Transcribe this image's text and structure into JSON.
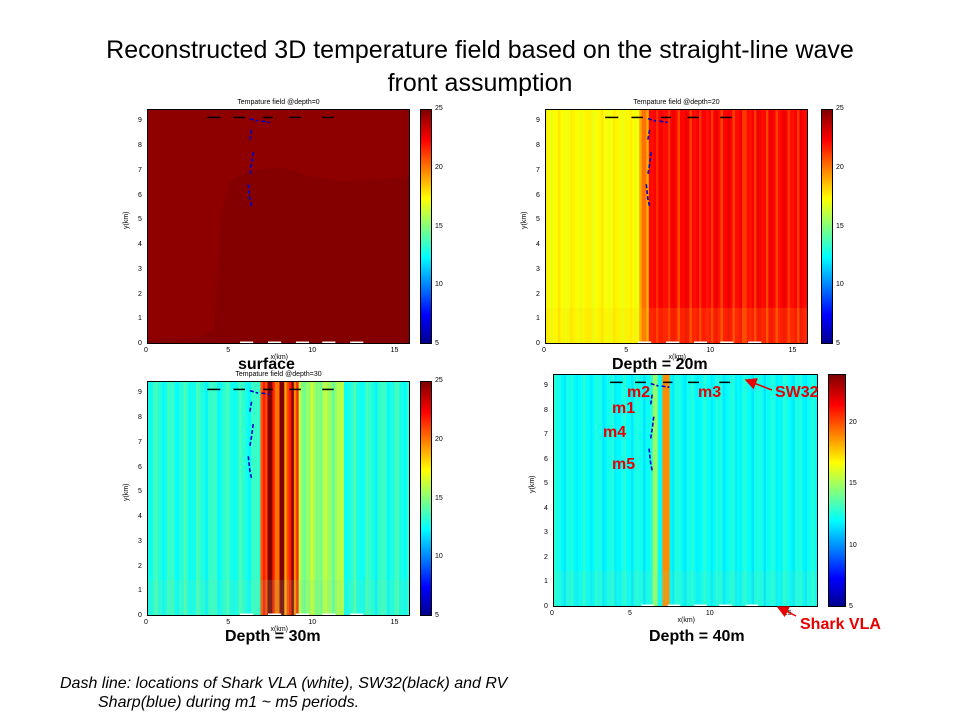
{
  "title_line1": "Reconstructed 3D temperature field based on the straight-line wave",
  "title_line2": "front assumption",
  "note_line1": "Dash line: locations of Shark VLA (white), SW32(black) and RV",
  "note_line2": "Sharp(blue) during m1 ~ m5 periods.",
  "annotations": {
    "m1": "m1",
    "m2": "m2",
    "m3": "m3",
    "m4": "m4",
    "m5": "m5",
    "sw32": "SW32",
    "shark_vla": "Shark VLA"
  },
  "colors": {
    "annotation": "#e60000",
    "sharp_track": "#0000cc",
    "sw32_dash": "#000000",
    "vla_dash": "#ffffff"
  },
  "chart_data": [
    {
      "type": "heatmap",
      "title": "Tempature field @depth=0",
      "caption": "surface",
      "xlabel": "x(km)",
      "ylabel": "y(km)",
      "xlim": [
        0,
        16
      ],
      "ylim": [
        0,
        9.5
      ],
      "x_ticks": [
        "0",
        "5",
        "10",
        "15"
      ],
      "y_ticks": [
        "0",
        "1",
        "2",
        "3",
        "4",
        "5",
        "6",
        "7",
        "8",
        "9"
      ],
      "colorbar": {
        "min": 5,
        "max": 25,
        "ticks": [
          "5",
          "10",
          "15",
          "20",
          "25"
        ]
      },
      "temperature_field_estimate": "nearly uniform, about 25 (surface)"
    },
    {
      "type": "heatmap",
      "title": "Tempature field @depth=20",
      "caption": "Depth = 20m",
      "xlabel": "x(km)",
      "ylabel": "y(km)",
      "xlim": [
        0,
        16
      ],
      "ylim": [
        0,
        9.5
      ],
      "x_ticks": [
        "0",
        "5",
        "10",
        "15"
      ],
      "y_ticks": [
        "0",
        "1",
        "2",
        "3",
        "4",
        "5",
        "6",
        "7",
        "8",
        "9"
      ],
      "colorbar": {
        "min": 5,
        "max": 25,
        "ticks": [
          "5",
          "10",
          "15",
          "20",
          "25"
        ]
      },
      "temperature_field_estimate": "about 17-18 for x<6 km, about 22-23 for x>6.5 km"
    },
    {
      "type": "heatmap",
      "title": "Tempature field @depth=30",
      "caption": "Depth = 30m",
      "xlabel": "x(km)",
      "ylabel": "y(km)",
      "xlim": [
        0,
        16
      ],
      "ylim": [
        0,
        9.5
      ],
      "x_ticks": [
        "0",
        "5",
        "10",
        "15"
      ],
      "y_ticks": [
        "0",
        "1",
        "2",
        "3",
        "4",
        "5",
        "6",
        "7",
        "8",
        "9"
      ],
      "colorbar": {
        "min": 5,
        "max": 25,
        "ticks": [
          "5",
          "10",
          "15",
          "20",
          "25"
        ]
      },
      "temperature_field_estimate": "about 12-14 background, warm bands 20-23 near x=7-9 km"
    },
    {
      "type": "heatmap",
      "title": "",
      "caption": "Depth = 40m",
      "xlabel": "x(km)",
      "ylabel": "y(km)",
      "xlim": [
        0,
        17
      ],
      "ylim": [
        0,
        9.5
      ],
      "x_ticks": [
        "0",
        "5",
        "10",
        "15"
      ],
      "y_ticks": [
        "0",
        "1",
        "2",
        "3",
        "4",
        "5",
        "6",
        "7",
        "8",
        "9"
      ],
      "colorbar": {
        "min": 5,
        "max": 24,
        "ticks": [
          "5",
          "10",
          "15",
          "20"
        ]
      },
      "temperature_field_estimate": "about 12-13 background, thin warm band near x=7 km"
    }
  ]
}
